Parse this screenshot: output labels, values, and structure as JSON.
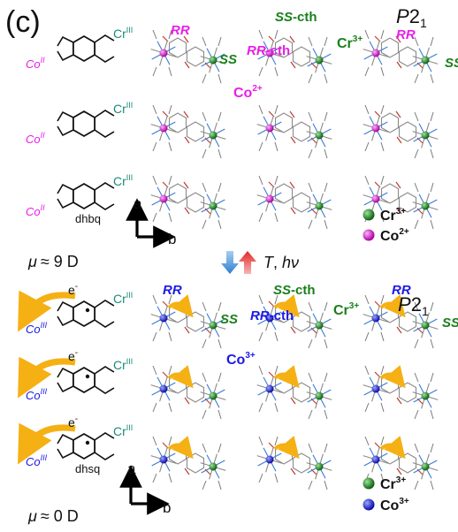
{
  "panel_label": "(c)",
  "colors": {
    "co_ii": "#e81ee8",
    "co_iii": "#1a1ae6",
    "cr": "#1a7f1a",
    "rr_top": "#e81ee8",
    "rr_bottom": "#1a1ae6",
    "ss": "#1a7f1a",
    "arrow_orange": "#f5b014",
    "arrow_blue": "#4a90e2",
    "arrow_red": "#e53935"
  },
  "top": {
    "labels": {
      "rr_left": "RR",
      "ss_left": "SS",
      "ss_cth_prefix": "SS",
      "ss_cth_suffix": "-cth",
      "cr_label": "Cr",
      "cr_charge": "3+",
      "rr_cth_prefix": "RR",
      "rr_cth_suffix": "-cth",
      "co_label": "Co",
      "co_charge": "2+",
      "rr_right": "RR",
      "ss_right": "SS",
      "space_group_main": "P",
      "space_group_num": "2",
      "space_group_sub": "1"
    },
    "ligand_label": "dhbq",
    "co_symbol": "Co",
    "co_ox": "II",
    "cr_symbol": "Cr",
    "cr_ox": "III",
    "dipole_symbol": "μ",
    "dipole_value": "≈ 9 D",
    "axes": {
      "a": "a",
      "b": "b"
    },
    "legend": [
      {
        "label": "Cr",
        "charge": "3+",
        "color": "#1a7f1a"
      },
      {
        "label": "Co",
        "charge": "2+",
        "color": "#e81ee8"
      }
    ]
  },
  "conversion": {
    "t_label": "T",
    "sep": ",",
    "hv_label": "hν"
  },
  "bottom": {
    "labels": {
      "rr_left": "RR",
      "ss_left": "SS",
      "ss_cth_prefix": "SS",
      "ss_cth_suffix": "-cth",
      "cr_label": "Cr",
      "cr_charge": "3+",
      "rr_cth_prefix": "RR",
      "rr_cth_suffix": "-cth",
      "co_label": "Co",
      "co_charge": "3+",
      "rr_right": "RR",
      "ss_right": "SS",
      "space_group_main": "P",
      "space_group_num": "2",
      "space_group_sub": "1"
    },
    "ligand_label": "dhsq",
    "co_symbol": "Co",
    "co_ox": "III",
    "cr_symbol": "Cr",
    "cr_ox": "III",
    "electron": "e",
    "electron_sign": "-",
    "dipole_symbol": "μ",
    "dipole_value": "≈ 0 D",
    "axes": {
      "a": "a",
      "b": "b"
    },
    "legend": [
      {
        "label": "Cr",
        "charge": "3+",
        "color": "#1a7f1a"
      },
      {
        "label": "Co",
        "charge": "3+",
        "color": "#1a1ae6"
      }
    ]
  }
}
